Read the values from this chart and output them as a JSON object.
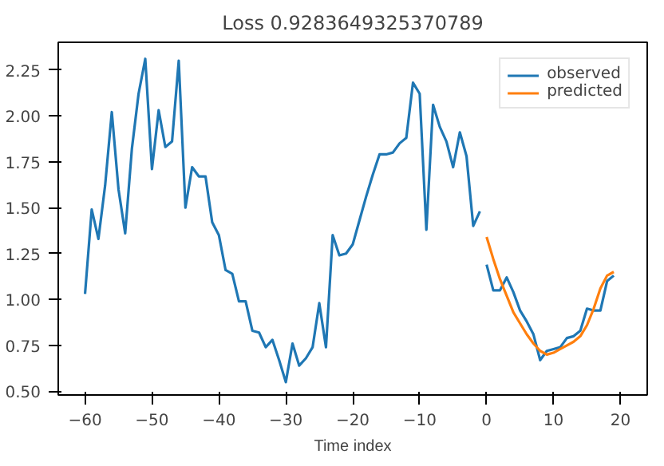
{
  "chart_data": {
    "type": "line",
    "title": "Loss 0.9283649325370789",
    "xlabel": "Time index",
    "xlim": [
      -64,
      24
    ],
    "ylim": [
      0.48,
      2.4
    ],
    "xticks": [
      -60,
      -50,
      -40,
      -30,
      -20,
      -10,
      0,
      10,
      20
    ],
    "yticks": [
      {
        "value": 0.5,
        "label": "0.50"
      },
      {
        "value": 0.75,
        "label": "0.75"
      },
      {
        "value": 1.0,
        "label": "1.00"
      },
      {
        "value": 1.25,
        "label": "1.25"
      },
      {
        "value": 1.5,
        "label": "1.50"
      },
      {
        "value": 1.75,
        "label": "1.75"
      },
      {
        "value": 2.0,
        "label": "2.00"
      },
      {
        "value": 2.25,
        "label": "2.25"
      }
    ],
    "grid": false,
    "legend": "top right",
    "series": [
      {
        "name": "observed",
        "color": "#1f77b4",
        "x": [
          -60,
          -59,
          -58,
          -57,
          -56,
          -55,
          -54,
          -53,
          -52,
          -51,
          -50,
          -49,
          -48,
          -47,
          -46,
          -45,
          -44,
          -43,
          -42,
          -41,
          -40,
          -39,
          -38,
          -37,
          -36,
          -35,
          -34,
          -33,
          -32,
          -31,
          -30,
          -29,
          -28,
          -27,
          -26,
          -25,
          -24,
          -23,
          -22,
          -21,
          -20,
          -19,
          -18,
          -17,
          -16,
          -15,
          -14,
          -13,
          -12,
          -11,
          -10,
          -9,
          -8,
          -7,
          -6,
          -5,
          -4,
          -3,
          -2,
          -1
        ],
        "values": [
          1.03,
          1.49,
          1.33,
          1.62,
          2.02,
          1.6,
          1.36,
          1.82,
          2.12,
          2.31,
          1.71,
          2.03,
          1.83,
          1.86,
          2.3,
          1.5,
          1.72,
          1.67,
          1.67,
          1.42,
          1.35,
          1.16,
          1.14,
          0.99,
          0.99,
          0.83,
          0.82,
          0.74,
          0.78,
          0.67,
          0.55,
          0.76,
          0.64,
          0.68,
          0.74,
          0.98,
          0.74,
          1.35,
          1.24,
          1.25,
          1.3,
          1.43,
          1.56,
          1.68,
          1.79,
          1.79,
          1.8,
          1.85,
          1.88,
          2.18,
          2.12,
          1.38,
          2.06,
          1.94,
          1.86,
          1.72,
          1.91,
          1.78,
          1.4,
          1.48
        ]
      },
      {
        "color": "#1f77b4",
        "x": [
          0,
          1,
          2,
          3,
          4,
          5,
          6,
          7,
          8,
          9,
          10,
          11,
          12,
          13,
          14,
          15,
          16,
          17,
          18,
          19
        ],
        "values": [
          1.19,
          1.05,
          1.05,
          1.12,
          1.04,
          0.94,
          0.88,
          0.81,
          0.67,
          0.72,
          0.73,
          0.74,
          0.79,
          0.8,
          0.83,
          0.95,
          0.94,
          0.94,
          1.1,
          1.13
        ]
      },
      {
        "name": "predicted",
        "color": "#ff7f0e",
        "x": [
          0,
          1,
          2,
          3,
          4,
          5,
          6,
          7,
          8,
          9,
          10,
          11,
          12,
          13,
          14,
          15,
          16,
          17,
          18,
          19
        ],
        "values": [
          1.34,
          1.22,
          1.11,
          1.02,
          0.93,
          0.87,
          0.81,
          0.76,
          0.72,
          0.7,
          0.71,
          0.73,
          0.75,
          0.77,
          0.8,
          0.86,
          0.95,
          1.06,
          1.13,
          1.15
        ]
      }
    ]
  }
}
